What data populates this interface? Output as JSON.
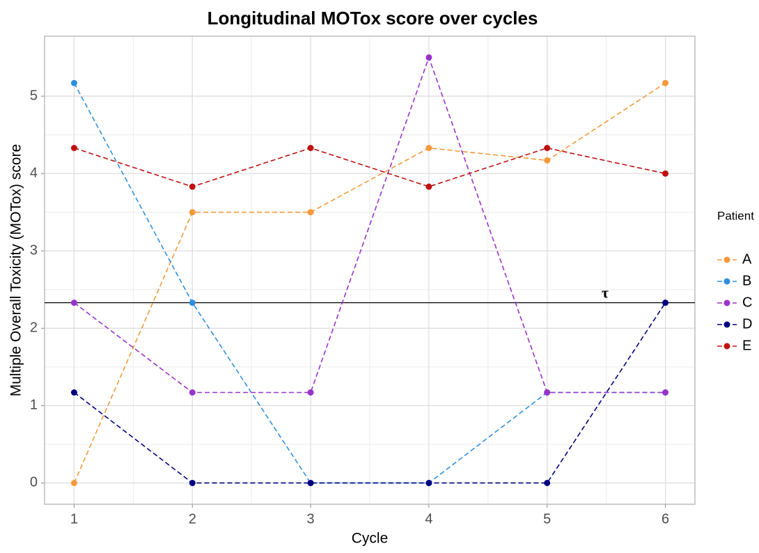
{
  "chart_data": {
    "type": "line",
    "title": "Longitudinal MOTox score over cycles",
    "x_label": "Cycle",
    "y_label": "Multiple Overall Toxicity (MOTox) score",
    "x": [
      1,
      2,
      3,
      4,
      5,
      6
    ],
    "series": [
      {
        "name": "A",
        "color": "#f5993a",
        "values": [
          0,
          3.5,
          3.5,
          4.33,
          4.17,
          5.17
        ]
      },
      {
        "name": "B",
        "color": "#2e8fe0",
        "values": [
          5.17,
          2.33,
          0,
          0,
          1.17,
          1.17
        ]
      },
      {
        "name": "C",
        "color": "#9932cc",
        "values": [
          2.33,
          1.17,
          1.17,
          5.5,
          1.17,
          1.17
        ]
      },
      {
        "name": "D",
        "color": "#000080",
        "values": [
          1.17,
          0,
          0,
          0,
          0,
          2.33
        ]
      },
      {
        "name": "E",
        "color": "#c01010",
        "values": [
          4.33,
          3.83,
          4.33,
          3.83,
          4.33,
          4.0
        ]
      }
    ],
    "legend_title": "Patient",
    "threshold": {
      "y": 2.33,
      "label": "τ"
    },
    "xlim": [
      0.75,
      6.25
    ],
    "xticks": [
      1,
      2,
      3,
      4,
      5,
      6
    ],
    "ylim": [
      -0.275,
      5.775
    ],
    "yticks": [
      0,
      1,
      2,
      3,
      4,
      5
    ],
    "grid": true,
    "line_style": "dashed"
  }
}
